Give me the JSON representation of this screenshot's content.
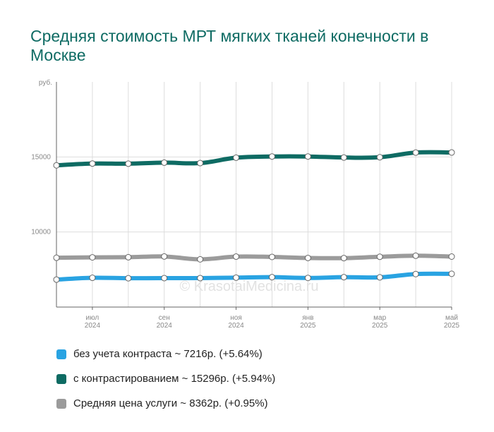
{
  "title": "Средняя стоимость МРТ мягких тканей конечности в Москве",
  "watermark": "© KrasotaiMedicina.ru",
  "chart_data": {
    "type": "line",
    "y_unit": "руб.",
    "x": [
      "2024-06",
      "2024-07",
      "2024-08",
      "2024-09",
      "2024-10",
      "2024-11",
      "2024-12",
      "2025-01",
      "2025-02",
      "2025-03",
      "2025-04",
      "2025-05"
    ],
    "x_tick_labels": [
      {
        "month": "июл",
        "year": "2024"
      },
      {
        "month": "сен",
        "year": "2024"
      },
      {
        "month": "ноя",
        "year": "2024"
      },
      {
        "month": "янв",
        "year": "2025"
      },
      {
        "month": "мар",
        "year": "2025"
      },
      {
        "month": "май",
        "year": "2025"
      }
    ],
    "y_ticks": [
      "10000",
      "15000"
    ],
    "ylim": [
      5000,
      20000
    ],
    "grid": true,
    "legend_position": "bottom",
    "series": [
      {
        "name": "без учета контраста ~ 7216р. (+5.64%)",
        "color": "#29a3e2",
        "values": [
          6830,
          6950,
          6920,
          6930,
          6930,
          6960,
          6990,
          6940,
          6990,
          6980,
          7200,
          7216
        ]
      },
      {
        "name": "с контрастированием ~ 15296р. (+5.94%)",
        "color": "#0e6b63",
        "values": [
          14440,
          14560,
          14550,
          14620,
          14590,
          14950,
          15030,
          15030,
          14960,
          14980,
          15290,
          15296
        ]
      },
      {
        "name": "Средняя цена услуги ~ 8362р. (+0.95%)",
        "color": "#9b9b9b",
        "values": [
          8284,
          8310,
          8320,
          8370,
          8180,
          8360,
          8340,
          8270,
          8260,
          8350,
          8420,
          8362
        ]
      }
    ]
  }
}
